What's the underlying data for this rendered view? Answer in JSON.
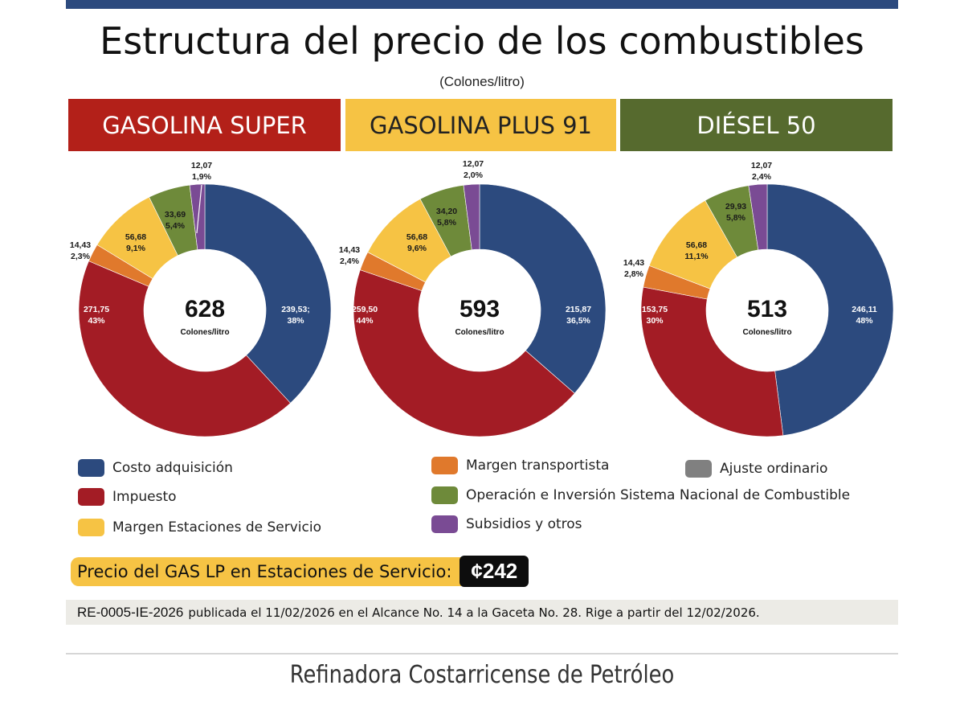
{
  "title": "Estructura del precio de los combustibles",
  "subtitle": "(Colones/litro)",
  "colors": {
    "costo": "#2c4a7e",
    "impuesto": "#a31c25",
    "margen_estaciones": "#f6c344",
    "margen_transportista": "#e0792c",
    "operacion": "#6e8a3a",
    "subsidios": "#7a4b94",
    "ajuste": "#808080",
    "header_super": "#b32019",
    "header_plus": "#f6c344",
    "header_diesel": "#566a2e"
  },
  "legend": [
    {
      "key": "costo",
      "label": "Costo adquisición"
    },
    {
      "key": "impuesto",
      "label": "Impuesto"
    },
    {
      "key": "margen_estaciones",
      "label": "Margen Estaciones de Servicio"
    },
    {
      "key": "margen_transportista",
      "label": "Margen transportista"
    },
    {
      "key": "operacion",
      "label": "Operación e Inversión Sistema Nacional de Combustible"
    },
    {
      "key": "subsidios",
      "label": "Subsidios y otros"
    },
    {
      "key": "ajuste",
      "label": "Ajuste ordinario"
    }
  ],
  "gas_lp": {
    "label": "Precio del GAS LP en Estaciones de Servicio:",
    "price": "¢242"
  },
  "resolution": {
    "code": "RE-0005-IE-2026",
    "text": "publicada el 11/02/2026 en el Alcance No. 14 a la Gaceta No. 28. Rige a partir del  12/02/2026."
  },
  "footer": "Refinadora Costarricense de Petróleo",
  "chart_data": [
    {
      "type": "pie",
      "title": "GASOLINA SUPER",
      "total": "628",
      "unit": "Colones/litro",
      "slices": [
        {
          "key": "costo",
          "value": 239.53,
          "label": "239,53;",
          "pct": "38%"
        },
        {
          "key": "impuesto",
          "value": 271.75,
          "label": "271,75",
          "pct": "43%"
        },
        {
          "key": "margen_transportista",
          "value": 14.43,
          "label": "14,43",
          "pct": "2,3%"
        },
        {
          "key": "margen_estaciones",
          "value": 56.68,
          "label": "56,68",
          "pct": "9,1%"
        },
        {
          "key": "operacion",
          "value": 33.69,
          "label": "33,69",
          "pct": "5,4%"
        },
        {
          "key": "subsidios",
          "value": 12.07,
          "label": "12,07",
          "pct": "1,9%"
        }
      ]
    },
    {
      "type": "pie",
      "title": "GASOLINA PLUS 91",
      "total": "593",
      "unit": "Colones/litro",
      "slices": [
        {
          "key": "costo",
          "value": 215.87,
          "label": "215,87",
          "pct": "36,5%"
        },
        {
          "key": "impuesto",
          "value": 259.5,
          "label": "259,50",
          "pct": "44%"
        },
        {
          "key": "margen_transportista",
          "value": 14.43,
          "label": "14,43",
          "pct": "2,4%"
        },
        {
          "key": "margen_estaciones",
          "value": 56.68,
          "label": "56,68",
          "pct": "9,6%"
        },
        {
          "key": "operacion",
          "value": 34.2,
          "label": "34,20",
          "pct": "5,8%"
        },
        {
          "key": "subsidios",
          "value": 12.07,
          "label": "12,07",
          "pct": "2,0%"
        }
      ]
    },
    {
      "type": "pie",
      "title": "DIÉSEL 50",
      "total": "513",
      "unit": "Colones/litro",
      "slices": [
        {
          "key": "costo",
          "value": 246.11,
          "label": "246,11",
          "pct": "48%"
        },
        {
          "key": "impuesto",
          "value": 153.75,
          "label": "153,75",
          "pct": "30%"
        },
        {
          "key": "margen_transportista",
          "value": 14.43,
          "label": "14,43",
          "pct": "2,8%"
        },
        {
          "key": "margen_estaciones",
          "value": 56.68,
          "label": "56,68",
          "pct": "11,1%"
        },
        {
          "key": "operacion",
          "value": 29.93,
          "label": "29,93",
          "pct": "5,8%"
        },
        {
          "key": "subsidios",
          "value": 12.07,
          "label": "12,07",
          "pct": "2,4%"
        }
      ]
    }
  ]
}
